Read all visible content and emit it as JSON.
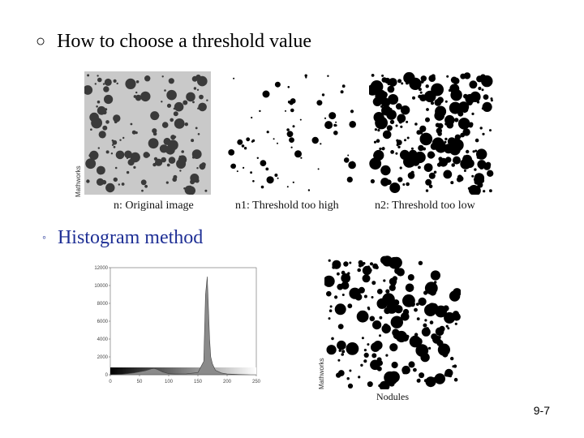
{
  "slide": {
    "bullet_main": "How to choose a threshold value",
    "bullet_sub": "Histogram method",
    "page_number": "9-7"
  },
  "top_figure": {
    "captions": [
      "n: Original image",
      "n1: Threshold too high",
      "n2: Threshold too low"
    ],
    "side_label": "Mathworks"
  },
  "bottom_figure": {
    "side_label": "Mathworks",
    "caption": "Nodules"
  },
  "chart_data": {
    "type": "area",
    "title": "",
    "xlabel": "",
    "ylabel": "",
    "xlim": [
      0,
      250
    ],
    "ylim": [
      0,
      12000
    ],
    "x_ticks": [
      "0",
      "50",
      "100",
      "150",
      "200",
      "250"
    ],
    "y_ticks": [
      "0",
      "2000",
      "4000",
      "6000",
      "8000",
      "10000",
      "12000"
    ],
    "x": [
      0,
      20,
      40,
      60,
      70,
      75,
      80,
      90,
      100,
      110,
      130,
      150,
      160,
      163,
      166,
      170,
      172,
      175,
      180,
      190,
      200,
      220,
      240,
      250
    ],
    "series": [
      {
        "values": [
          0,
          50,
          200,
          450,
          650,
          700,
          600,
          300,
          120,
          80,
          100,
          250,
          1500,
          9000,
          11000,
          4000,
          2000,
          1200,
          500,
          200,
          80,
          30,
          0,
          0
        ]
      }
    ]
  }
}
